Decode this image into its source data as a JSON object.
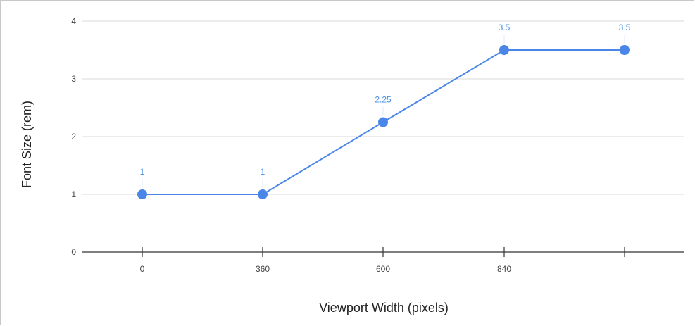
{
  "chart_data": {
    "type": "line",
    "xlabel": "Viewport Width (pixels)",
    "ylabel": "Font Size (rem)",
    "x_tick_labels": [
      "0",
      "360",
      "600",
      "840",
      ""
    ],
    "y_ticks": [
      0,
      1,
      2,
      3,
      4
    ],
    "ylim": [
      0,
      4
    ],
    "grid": true,
    "series": [
      {
        "points": [
          {
            "x": "0",
            "y": 1,
            "label": "1"
          },
          {
            "x": "360",
            "y": 1,
            "label": "1"
          },
          {
            "x": "600",
            "y": 2.25,
            "label": "2.25"
          },
          {
            "x": "840",
            "y": 3.5,
            "label": "3.5"
          },
          {
            "x": "",
            "y": 3.5,
            "label": "3.5"
          }
        ],
        "color": "#4a86e8"
      }
    ],
    "colors": {
      "line": "#4a86e8",
      "data_label": "#4a90e2",
      "grid": "#d9d9d9",
      "axis": "#333333"
    }
  }
}
